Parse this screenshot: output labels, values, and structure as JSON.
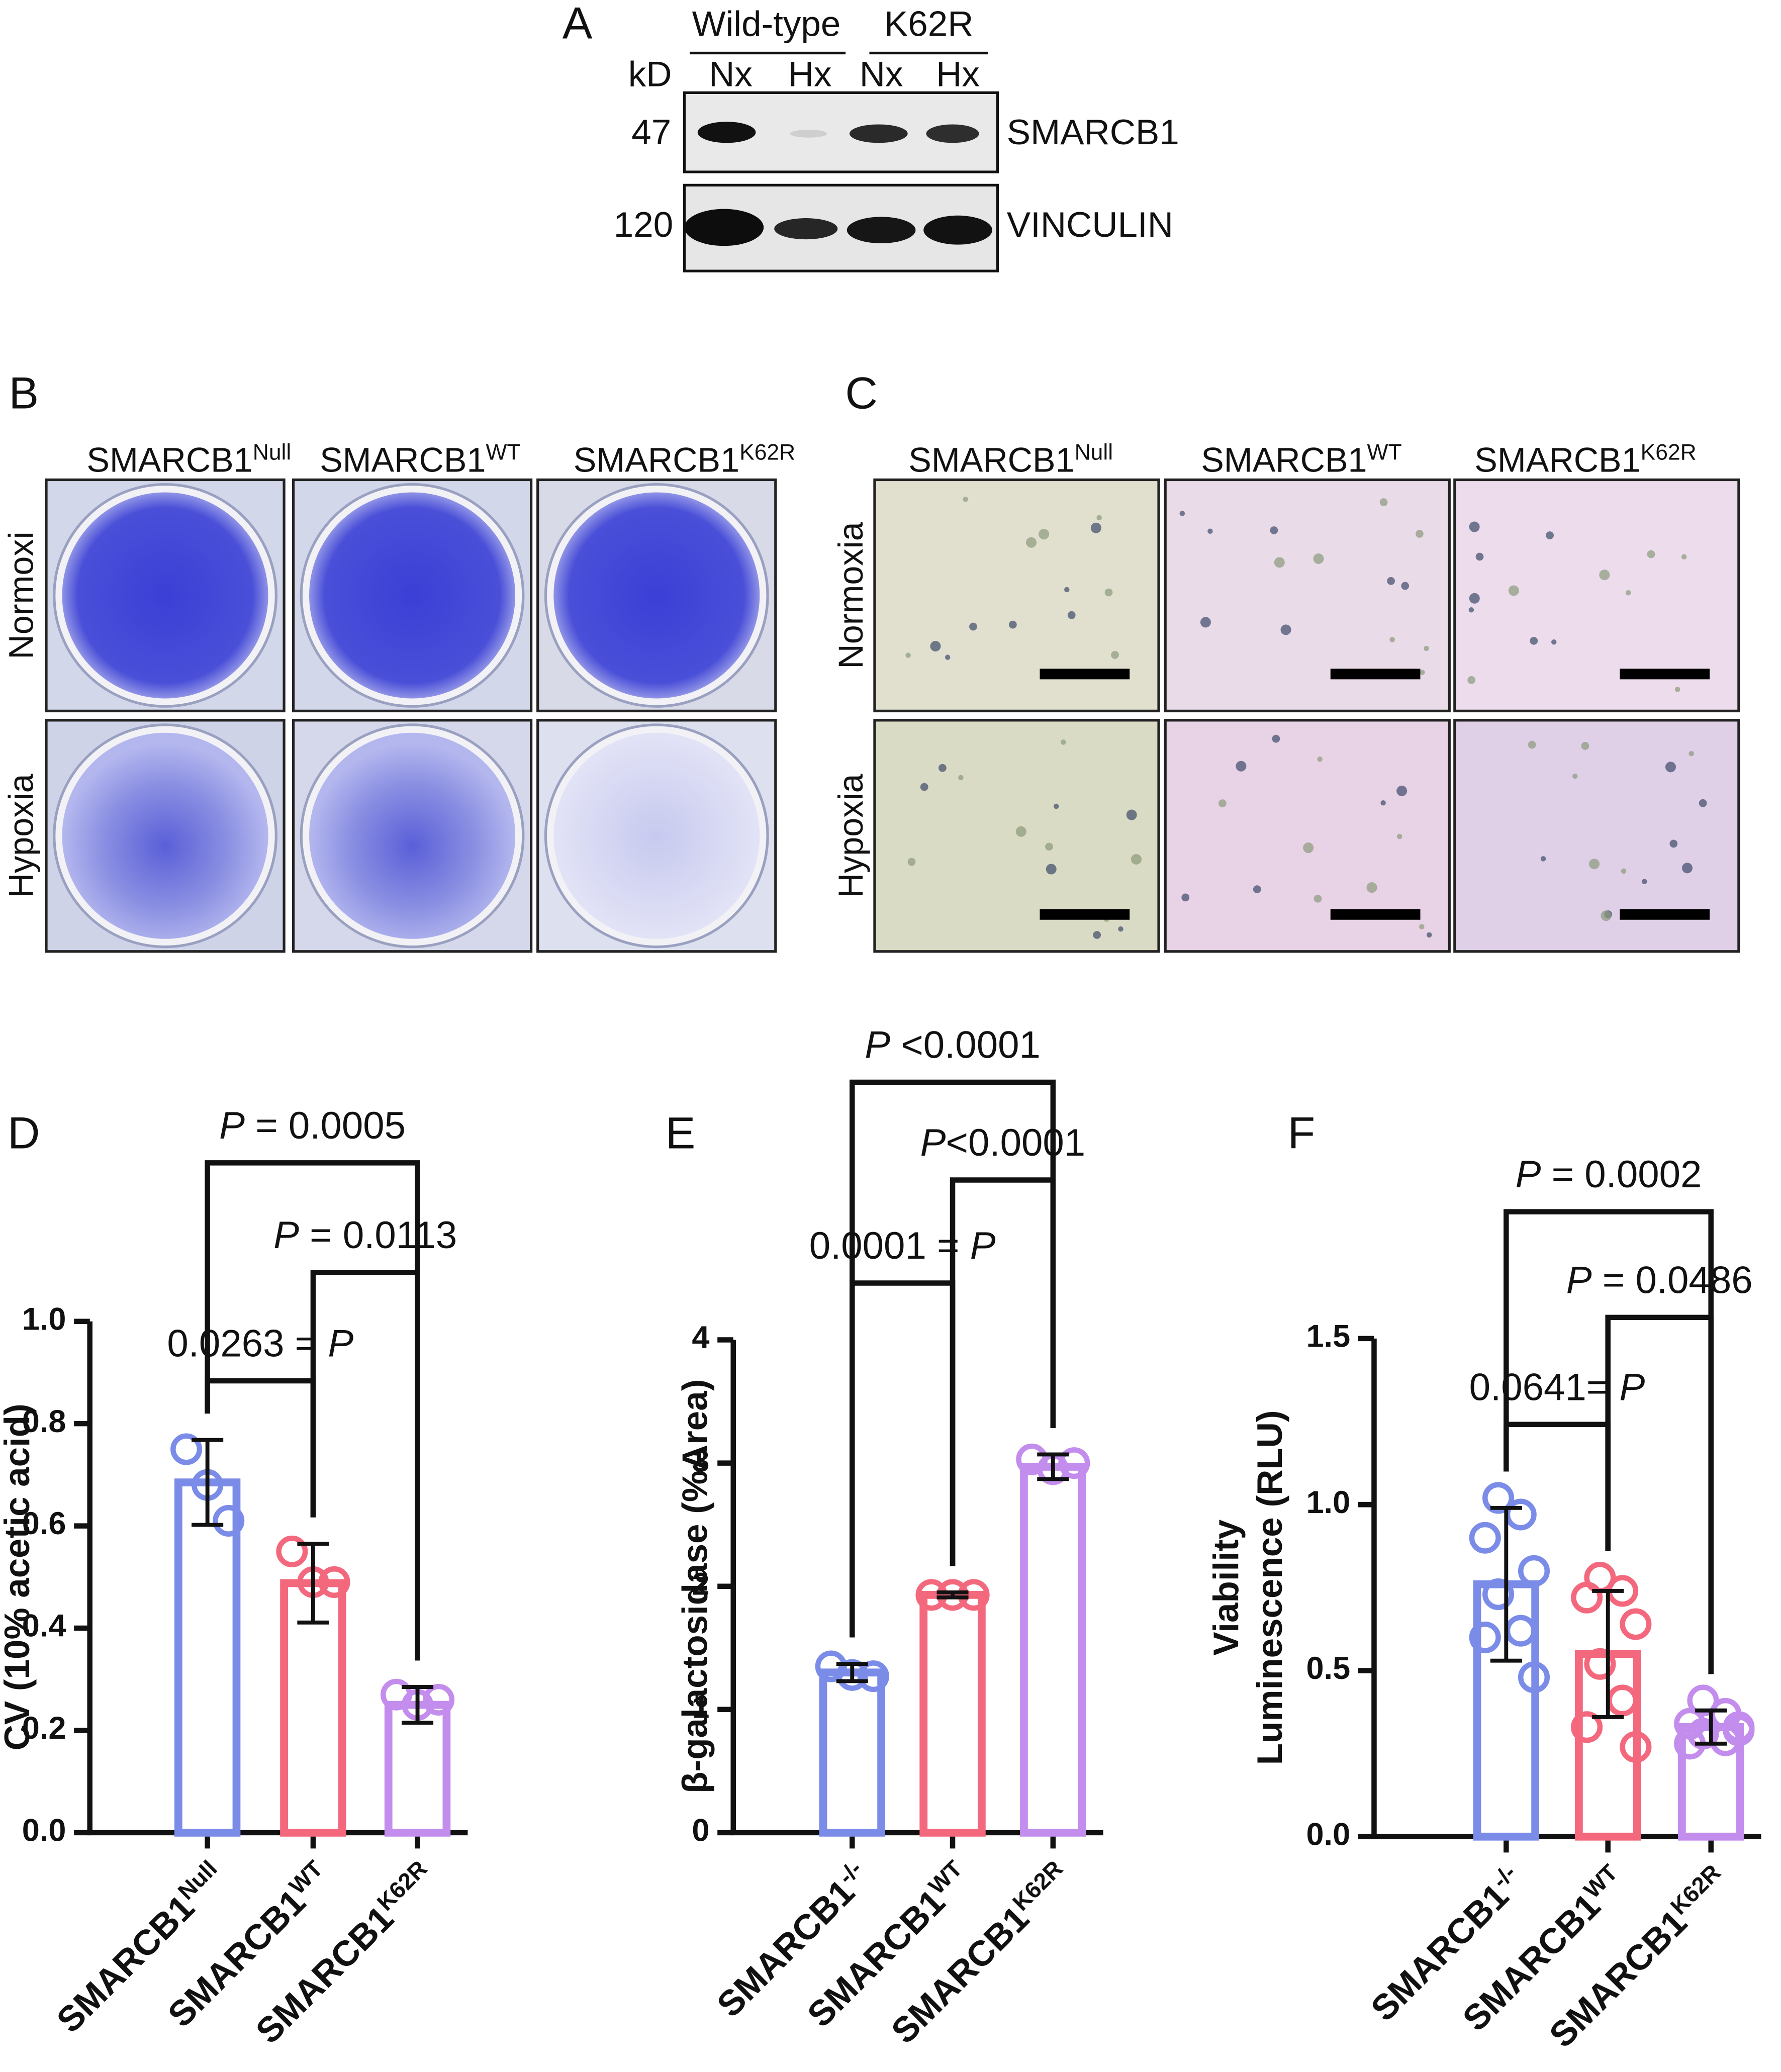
{
  "panel_a": {
    "label": "A",
    "groups": [
      "Wild-type",
      "K62R"
    ],
    "unit": "kD",
    "lanes": [
      "Nx",
      "Hx",
      "Nx",
      "Hx"
    ],
    "markers": [
      "47",
      "120"
    ],
    "proteins": [
      "SMARCB1",
      "VINCULIN"
    ]
  },
  "panel_b": {
    "label": "B",
    "columns": [
      "SMARCB1",
      "SMARCB1",
      "SMARCB1"
    ],
    "column_superscripts": [
      "Null",
      "WT",
      "K62R"
    ],
    "rows": [
      "Normoxi",
      "Hypoxia"
    ]
  },
  "panel_c": {
    "label": "C",
    "columns": [
      "SMARCB1",
      "SMARCB1",
      "SMARCB1"
    ],
    "column_superscripts": [
      "Null",
      "WT",
      "K62R"
    ],
    "rows": [
      "Normoxia",
      "Hypoxia"
    ]
  },
  "chart_data": [
    {
      "type": "bar",
      "panel_label": "D",
      "ylabel": [
        "CV (10% acetic acid)"
      ],
      "categories": [
        "SMARCB1",
        "SMARCB1",
        "SMARCB1"
      ],
      "category_superscripts": [
        "Null",
        "WT",
        "K62R"
      ],
      "colors": [
        "#7b8ce8",
        "#f4687e",
        "#c38ded"
      ],
      "values": [
        0.685,
        0.488,
        0.25
      ],
      "errors": [
        0.083,
        0.077,
        0.035
      ],
      "points": [
        [
          0.75,
          0.68,
          0.61
        ],
        [
          0.55,
          0.49,
          0.49
        ],
        [
          0.27,
          0.25,
          0.26
        ]
      ],
      "ylim": [
        0,
        1
      ],
      "yticks": [
        {
          "value": 0,
          "label": "0.0"
        },
        0.2,
        0.4,
        0.6,
        0.8,
        {
          "value": 1,
          "label": "1.0"
        }
      ],
      "comparisons": [
        {
          "from": 0,
          "to": 1,
          "label": [
            {
              "text": "0.0263 = "
            },
            {
              "text": "P",
              "italic": true
            }
          ]
        },
        {
          "from": 1,
          "to": 2,
          "label": [
            {
              "text": "P",
              "italic": true
            },
            {
              "text": " = 0.0113"
            }
          ]
        },
        {
          "from": 0,
          "to": 2,
          "label": [
            {
              "text": "P",
              "italic": true
            },
            {
              "text": " = 0.0005"
            }
          ]
        }
      ]
    },
    {
      "type": "bar",
      "panel_label": "E",
      "ylabel": [
        "β-galactosidase (%Area)"
      ],
      "categories": [
        "SMARCB1",
        "SMARCB1",
        "SMARCB1"
      ],
      "category_superscripts": [
        "-/-",
        "WT",
        "K62R"
      ],
      "colors": [
        "#7b8ce8",
        "#f4687e",
        "#c38ded"
      ],
      "values": [
        1.3,
        1.93,
        2.97
      ],
      "errors": [
        0.07,
        0.02,
        0.1
      ],
      "points": [
        [
          1.35,
          1.28,
          1.27
        ],
        [
          1.93,
          1.93,
          1.93
        ],
        [
          3.03,
          2.95,
          3.0
        ]
      ],
      "ylim": [
        0,
        4
      ],
      "yticks": [
        0,
        1,
        2,
        3,
        4
      ],
      "comparisons": [
        {
          "from": 0,
          "to": 1,
          "label": [
            {
              "text": "0.0001 = "
            },
            {
              "text": "P",
              "italic": true
            }
          ]
        },
        {
          "from": 1,
          "to": 2,
          "label": [
            {
              "text": "P",
              "italic": true
            },
            {
              "text": "<0.0001"
            }
          ]
        },
        {
          "from": 0,
          "to": 2,
          "label": [
            {
              "text": "P",
              "italic": true
            },
            {
              "text": " <0.0001"
            }
          ]
        }
      ]
    },
    {
      "type": "bar",
      "panel_label": "F",
      "ylabel": [
        "Viability",
        "Luminescence (RLU)"
      ],
      "categories": [
        "SMARCB1",
        "SMARCB1",
        "SMARCB1"
      ],
      "category_superscripts": [
        "-/-",
        "WT",
        "K62R"
      ],
      "colors": [
        "#7b8ce8",
        "#f4687e",
        "#c38ded"
      ],
      "values": [
        0.76,
        0.55,
        0.33
      ],
      "errors": [
        0.23,
        0.19,
        0.05
      ],
      "points": [
        [
          1.02,
          0.97,
          0.9,
          0.8,
          0.73,
          0.62,
          0.6,
          0.48
        ],
        [
          0.78,
          0.74,
          0.72,
          0.64,
          0.52,
          0.41,
          0.33,
          0.27
        ],
        [
          0.41,
          0.37,
          0.34,
          0.33,
          0.31,
          0.29,
          0.28,
          0.32
        ]
      ],
      "ylim": [
        0,
        1.5
      ],
      "yticks": [
        {
          "value": 0,
          "label": "0.0"
        },
        0.5,
        {
          "value": 1,
          "label": "1.0"
        },
        1.5
      ],
      "comparisons": [
        {
          "from": 0,
          "to": 1,
          "label": [
            {
              "text": "0.0641= "
            },
            {
              "text": "P",
              "italic": true
            }
          ]
        },
        {
          "from": 1,
          "to": 2,
          "label": [
            {
              "text": "P",
              "italic": true
            },
            {
              "text": " = 0.0486"
            }
          ]
        },
        {
          "from": 0,
          "to": 2,
          "label": [
            {
              "text": "P",
              "italic": true
            },
            {
              "text": " = 0.0002"
            }
          ]
        }
      ]
    }
  ]
}
